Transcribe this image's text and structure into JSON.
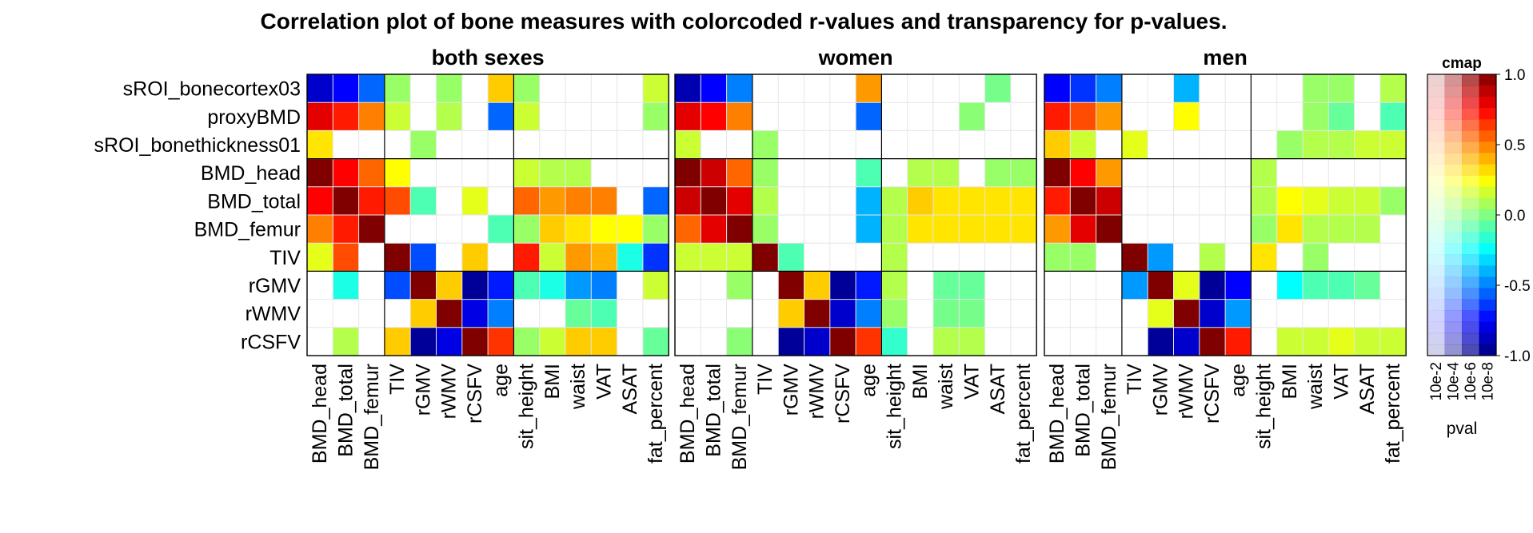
{
  "chart_data": {
    "type": "heatmap",
    "title": "Correlation plot of bone measures with colorcoded r-values and transparency for p-values.",
    "rows": [
      "sROI_bonecortex03",
      "proxyBMD",
      "sROI_bonethickness01",
      "BMD_head",
      "BMD_total",
      "BMD_femur",
      "TIV",
      "rGMV",
      "rWMV",
      "rCSFV"
    ],
    "columns": [
      "BMD_head",
      "BMD_total",
      "BMD_femur",
      "TIV",
      "rGMV",
      "rWMV",
      "rCSFV",
      "age",
      "sit_height",
      "BMI",
      "waist",
      "VAT",
      "ASAT",
      "fat_percent"
    ],
    "value_range": [
      -1.0,
      1.0
    ],
    "panels": [
      {
        "name": "both sexes",
        "r": [
          [
            -0.85,
            -0.75,
            -0.55,
            0.05,
            0,
            0.05,
            0,
            0.35,
            0.05,
            0,
            0,
            0,
            0,
            0.15
          ],
          [
            0.8,
            0.7,
            0.5,
            0.15,
            0,
            0.1,
            0,
            -0.55,
            0.15,
            0,
            0,
            0,
            0,
            0.05
          ],
          [
            0.3,
            0,
            0,
            0,
            0.05,
            0,
            0,
            0,
            0,
            0,
            0,
            0,
            0,
            0
          ],
          [
            1.0,
            0.75,
            0.55,
            0.25,
            0,
            0,
            0,
            0,
            0.15,
            0.1,
            0.1,
            0,
            0,
            0
          ],
          [
            0.75,
            1.0,
            0.7,
            0.6,
            -0.1,
            0,
            0.2,
            0,
            0.55,
            0.45,
            0.5,
            0.5,
            0,
            -0.55
          ],
          [
            0.5,
            0.7,
            1.0,
            0,
            0,
            0,
            0,
            -0.1,
            0.05,
            0.35,
            0.3,
            0.25,
            0.25,
            0.05
          ],
          [
            0.2,
            0.6,
            0,
            1.0,
            -0.6,
            0,
            0.35,
            0,
            0.7,
            0.15,
            0.45,
            0.4,
            -0.2,
            -0.65
          ],
          [
            0,
            -0.2,
            0,
            -0.6,
            1.0,
            0.35,
            -0.95,
            -0.7,
            -0.1,
            -0.2,
            -0.45,
            -0.5,
            0,
            0.15
          ],
          [
            0,
            0,
            0,
            0,
            0.35,
            1.0,
            -0.8,
            -0.5,
            0,
            0,
            -0.05,
            -0.1,
            0,
            0
          ],
          [
            0,
            0.1,
            0,
            0.35,
            -0.95,
            -0.8,
            1.0,
            0.65,
            0.05,
            0.15,
            0.35,
            0.35,
            0,
            -0.05
          ]
        ]
      },
      {
        "name": "women",
        "r": [
          [
            -0.9,
            -0.75,
            -0.5,
            0,
            0,
            0,
            0,
            0.45,
            0,
            0,
            0,
            0,
            -0.02,
            0
          ],
          [
            0.8,
            0.75,
            0.5,
            0,
            0,
            0,
            0,
            -0.55,
            0,
            0,
            0,
            0.02,
            0,
            0
          ],
          [
            0.15,
            0,
            0,
            0.05,
            0,
            0,
            0,
            0,
            0,
            0,
            0,
            0,
            0,
            0
          ],
          [
            1.0,
            0.85,
            0.55,
            0.05,
            0,
            0,
            0,
            -0.1,
            0,
            0.1,
            0.1,
            0,
            0.05,
            0.05
          ],
          [
            0.85,
            1.0,
            0.8,
            0.1,
            0,
            0,
            0,
            -0.4,
            0.1,
            0.35,
            0.3,
            0.3,
            0.3,
            0.3
          ],
          [
            0.55,
            0.8,
            1.0,
            0.05,
            0,
            0,
            0,
            -0.4,
            0.1,
            0.3,
            0.3,
            0.3,
            0.3,
            0.3
          ],
          [
            0.15,
            0.15,
            0.15,
            1.0,
            -0.1,
            0,
            0,
            0,
            0.1,
            0,
            0,
            0,
            0,
            0
          ],
          [
            0,
            0,
            0.05,
            0,
            1.0,
            0.35,
            -0.95,
            -0.7,
            0.1,
            0,
            -0.05,
            -0.05,
            0,
            0
          ],
          [
            0,
            0,
            0,
            0,
            0.35,
            1.0,
            -0.85,
            -0.5,
            0.05,
            0,
            -0.02,
            -0.02,
            0,
            0
          ],
          [
            0,
            0,
            0.02,
            0,
            -0.95,
            -0.85,
            1.0,
            0.65,
            -0.15,
            0,
            0.1,
            0.1,
            0,
            0
          ]
        ]
      },
      {
        "name": "men",
        "r": [
          [
            -0.75,
            -0.65,
            -0.5,
            0,
            0,
            -0.4,
            0,
            0,
            0,
            0,
            0.05,
            0.05,
            0,
            0.1
          ],
          [
            0.7,
            0.6,
            0.45,
            0,
            0,
            0.25,
            0,
            0,
            0,
            0,
            0.05,
            -0.05,
            0,
            -0.1
          ],
          [
            0.35,
            0.15,
            0,
            0.2,
            0,
            0,
            0,
            0,
            0,
            0.05,
            0.1,
            0.1,
            0.15,
            0.15
          ],
          [
            1.0,
            0.75,
            0.45,
            0,
            0,
            0,
            0,
            0,
            0.1,
            0,
            0,
            0,
            0,
            0
          ],
          [
            0.7,
            1.0,
            0.85,
            0,
            0,
            0,
            0,
            0,
            0.1,
            0.25,
            0.2,
            0.15,
            0.15,
            0.05
          ],
          [
            0.45,
            0.8,
            1.0,
            0,
            0,
            0,
            0,
            0,
            0.05,
            0.3,
            0.1,
            0.1,
            0.1,
            0
          ],
          [
            0.05,
            0.05,
            0,
            1.0,
            -0.45,
            0,
            0.1,
            0,
            0.3,
            0,
            0.05,
            0,
            0,
            0
          ],
          [
            0,
            0,
            0,
            -0.45,
            1.0,
            0.2,
            -0.95,
            -0.75,
            0,
            -0.25,
            -0.1,
            -0.1,
            -0.05,
            0
          ],
          [
            0,
            0,
            0,
            0,
            0.2,
            1.0,
            -0.85,
            -0.45,
            0,
            0,
            0,
            0,
            0,
            0
          ],
          [
            0,
            0,
            0,
            0,
            -0.95,
            -0.85,
            1.0,
            0.7,
            0,
            0.15,
            0.15,
            0.2,
            0.15,
            0.15
          ]
        ]
      }
    ],
    "colorbar": {
      "title": "cmap",
      "ticks": [
        "1.0",
        "0.5",
        "0.0",
        "-0.5",
        "-1.0"
      ],
      "tick_values": [
        1.0,
        0.5,
        0.0,
        -0.5,
        -1.0
      ],
      "pval_ticks": [
        "10e-2",
        "10e-4",
        "10e-6",
        "10e-8"
      ],
      "xlabel": "pval"
    }
  }
}
